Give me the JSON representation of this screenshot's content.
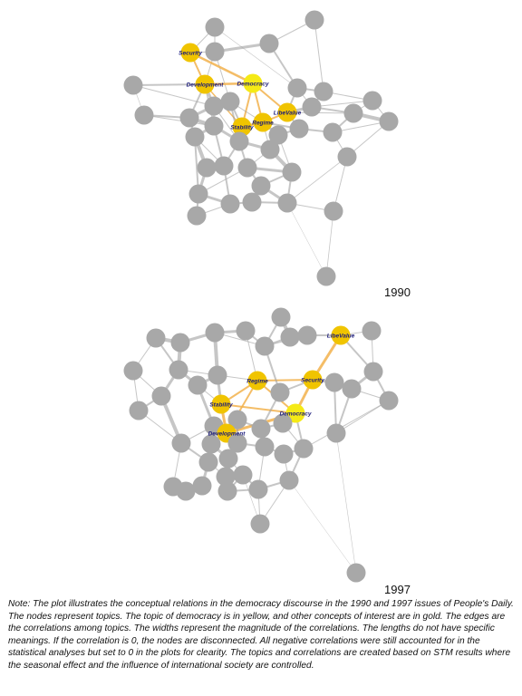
{
  "networks": [
    {
      "year": "1990",
      "labels": {
        "security": "Security",
        "development": "Development",
        "democracy": "Democracy",
        "libevalue": "LibeValue",
        "regime": "Regime",
        "stability": "Stability"
      }
    },
    {
      "year": "1997",
      "labels": {
        "libevalue": "LibeValue",
        "regime": "Regime",
        "security": "Security",
        "stability": "Stability",
        "democracy": "Democracy",
        "development": "Development"
      }
    }
  ],
  "note": "Note: The plot illustrates the conceptual relations in the democracy discourse in the 1990 and 1997 issues of People's Daily. The nodes represent topics. The topic of democracy is in yellow, and other concepts of interest are in gold. The edges are the correlations among topics. The widths represent the magnitude of the correlations. The lengths do not have specific meanings. If the correlation is 0, the nodes are disconnected. All negative correlations were still accounted for in the statistical analyses but set to 0 in the plots for clearity. The topics and correlations are created based on STM results where the seasonal effect and the influence of international society are controlled.",
  "colors": {
    "topic_node": "#a8a8a8",
    "democracy_node": "#f5ea16",
    "concept_node": "#f0c400",
    "edge": "#a0a0a0",
    "highlight_edge": "#f2b24c",
    "label_text": "#1a1a7a"
  }
}
